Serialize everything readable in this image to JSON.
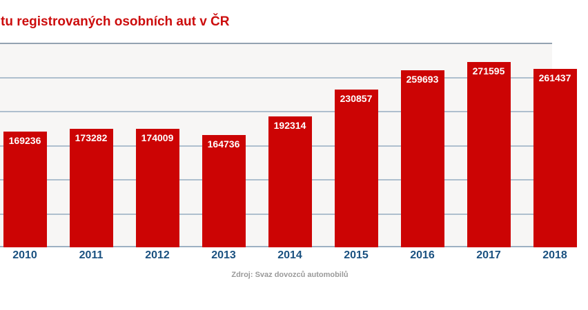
{
  "header": {
    "title": "tu registrovaných osobních aut v ČR"
  },
  "footer": {
    "source": "Zdroj: Svaz dovozců automobilů"
  },
  "colors": {
    "bar": "#cc0404",
    "bar_label": "#ffffff",
    "title": "#cc0d0d",
    "axis_label": "#1a5180",
    "gridline": "#aebfce",
    "plot_background": "#f7f6f5",
    "source_text": "#9a9a9a"
  },
  "chart_data": {
    "type": "bar",
    "title": "tu registrovaných osobních aut v ČR",
    "categories": [
      "2010",
      "2011",
      "2012",
      "2013",
      "2014",
      "2015",
      "2016",
      "2017",
      "2018"
    ],
    "values": [
      169236,
      173282,
      174009,
      164736,
      192314,
      230857,
      259693,
      271595,
      261437
    ],
    "bar_labels": [
      "169236",
      "173282",
      "174009",
      "164736",
      "192314",
      "230857",
      "259693",
      "271595",
      "261437"
    ],
    "xlabel": "",
    "ylabel": "",
    "ylim": [
      0,
      300000
    ],
    "gridline_step": 50000,
    "grid": true,
    "legend_position": "none",
    "source": "Zdroj: Svaz dovozců automobilů",
    "crop_note": "chart cropped at left and right edges of viewport"
  }
}
